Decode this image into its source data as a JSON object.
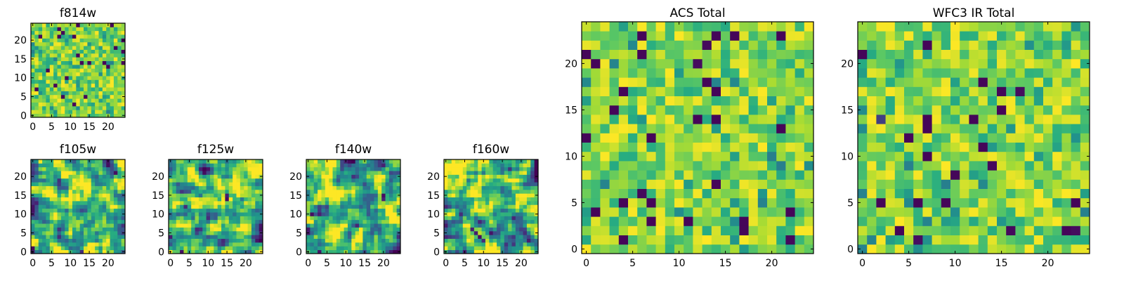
{
  "chart_data": [
    {
      "type": "heatmap",
      "key": "f814w",
      "title": "f814w",
      "grid_size": 25,
      "x_ticks": [
        0,
        5,
        10,
        15,
        20
      ],
      "y_ticks": [
        0,
        5,
        10,
        15,
        20
      ],
      "xlim": [
        -0.5,
        24.5
      ],
      "ylim": [
        -0.5,
        24.5
      ],
      "colormap": "viridis",
      "pattern": "fine per-pixel noise, mostly green-yellow with scattered dark blue pixels"
    },
    {
      "type": "heatmap",
      "key": "f105w",
      "title": "f105w",
      "grid_size": 25,
      "x_ticks": [
        0,
        5,
        10,
        15,
        20
      ],
      "y_ticks": [
        0,
        5,
        10,
        15,
        20
      ],
      "xlim": [
        -0.5,
        24.5
      ],
      "ylim": [
        -0.5,
        24.5
      ],
      "colormap": "viridis",
      "pattern": "smooth blotchy field, bright yellow upper-center, dark pixels at lower-left corner and upper-right"
    },
    {
      "type": "heatmap",
      "key": "f125w",
      "title": "f125w",
      "grid_size": 25,
      "x_ticks": [
        0,
        5,
        10,
        15,
        20
      ],
      "y_ticks": [
        0,
        5,
        10,
        15,
        20
      ],
      "xlim": [
        -0.5,
        24.5
      ],
      "ylim": [
        -0.5,
        24.5
      ],
      "colormap": "viridis",
      "pattern": "blotchy field with several dark pixels, notably near x=15,y=15 and along the bottom"
    },
    {
      "type": "heatmap",
      "key": "f140w",
      "title": "f140w",
      "grid_size": 25,
      "x_ticks": [
        0,
        5,
        10,
        15,
        20
      ],
      "y_ticks": [
        0,
        5,
        10,
        15,
        20
      ],
      "xlim": [
        -0.5,
        24.5
      ],
      "ylim": [
        -0.5,
        24.5
      ],
      "colormap": "viridis",
      "pattern": "blotchy field with dark pixels near x=20,y=15 and at the left edge"
    },
    {
      "type": "heatmap",
      "key": "f160w",
      "title": "f160w",
      "grid_size": 25,
      "x_ticks": [
        0,
        5,
        10,
        15,
        20
      ],
      "y_ticks": [
        0,
        5,
        10,
        15,
        20
      ],
      "xlim": [
        -0.5,
        24.5
      ],
      "ylim": [
        -0.5,
        24.5
      ],
      "colormap": "viridis",
      "pattern": "bright yellow upper-left region with dark streaks in the lower-center"
    },
    {
      "type": "heatmap",
      "key": "acs_total",
      "title": "ACS Total",
      "grid_size": 25,
      "x_ticks": [
        0,
        5,
        10,
        15,
        20
      ],
      "y_ticks": [
        0,
        5,
        10,
        15,
        20
      ],
      "xlim": [
        -0.5,
        24.5
      ],
      "ylim": [
        -0.5,
        24.5
      ],
      "colormap": "viridis",
      "pattern": "per-pixel noise, mostly green and yellow with isolated dark purple pixels"
    },
    {
      "type": "heatmap",
      "key": "wfc3_ir_total",
      "title": "WFC3 IR Total",
      "grid_size": 25,
      "x_ticks": [
        0,
        5,
        10,
        15,
        20
      ],
      "y_ticks": [
        0,
        5,
        10,
        15,
        20
      ],
      "xlim": [
        -0.5,
        24.5
      ],
      "ylim": [
        -0.5,
        24.5
      ],
      "colormap": "viridis",
      "pattern": "per-pixel noise, yellow patch near left at y=15, isolated dark purple pixels"
    }
  ],
  "colors": {
    "viridis_dark": "#440154",
    "viridis_mid": "#21918c",
    "viridis_bright": "#fde725"
  }
}
